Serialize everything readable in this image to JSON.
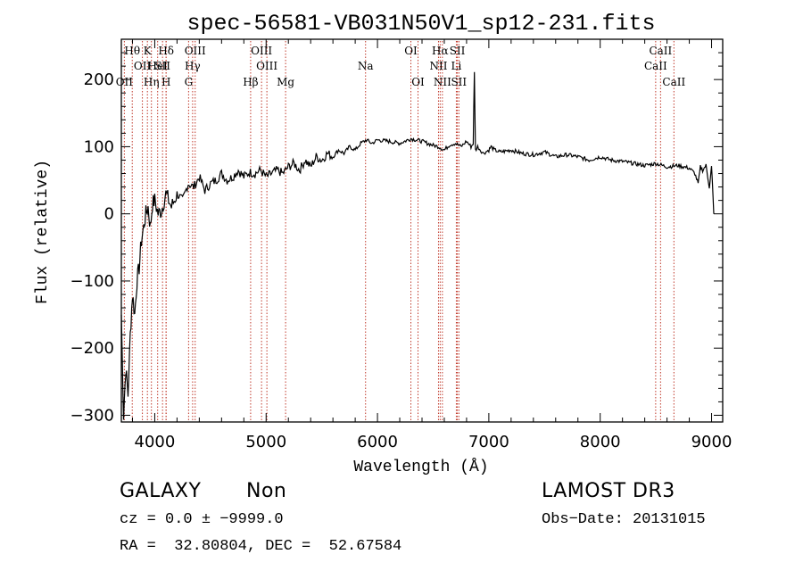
{
  "chart_data": {
    "type": "line",
    "title": "spec-56581-VB031N50V1_sp12-231.fits",
    "xlabel": "Wavelength (Å)",
    "ylabel": "Flux (relative)",
    "xlim": [
      3700,
      9100
    ],
    "ylim": [
      -310,
      260
    ],
    "xticks": [
      {
        "value": 4000,
        "label": "4000"
      },
      {
        "value": 5000,
        "label": "5000"
      },
      {
        "value": 6000,
        "label": "6000"
      },
      {
        "value": 7000,
        "label": "7000"
      },
      {
        "value": 8000,
        "label": "8000"
      },
      {
        "value": 9000,
        "label": "9000"
      }
    ],
    "yticks": [
      {
        "value": -300,
        "label": "−300"
      },
      {
        "value": -200,
        "label": "−200"
      },
      {
        "value": -100,
        "label": "−100"
      },
      {
        "value": 0,
        "label": "0"
      },
      {
        "value": 100,
        "label": "100"
      },
      {
        "value": 200,
        "label": "200"
      }
    ],
    "series": [
      {
        "name": "flux",
        "x": [
          3700,
          3720,
          3740,
          3760,
          3780,
          3800,
          3820,
          3840,
          3860,
          3880,
          3900,
          3920,
          3940,
          3960,
          3980,
          4000,
          4030,
          4060,
          4100,
          4150,
          4200,
          4250,
          4300,
          4350,
          4400,
          4450,
          4500,
          4550,
          4600,
          4650,
          4700,
          4750,
          4800,
          4850,
          4900,
          4950,
          5000,
          5050,
          5100,
          5150,
          5200,
          5250,
          5300,
          5350,
          5400,
          5450,
          5500,
          5550,
          5600,
          5650,
          5700,
          5750,
          5800,
          5850,
          5900,
          5950,
          6000,
          6100,
          6200,
          6300,
          6400,
          6500,
          6550,
          6600,
          6650,
          6700,
          6750,
          6800,
          6840,
          6860,
          6870,
          6880,
          6900,
          6950,
          7000,
          7020,
          7050,
          7100,
          7200,
          7300,
          7400,
          7500,
          7600,
          7700,
          7800,
          7900,
          8000,
          8100,
          8200,
          8300,
          8400,
          8500,
          8600,
          8700,
          8800,
          8850,
          8880,
          8900,
          8920,
          8950,
          8980,
          9000,
          9020
        ],
        "y": [
          -150,
          -300,
          -230,
          -270,
          -180,
          -120,
          -150,
          -100,
          -80,
          -40,
          -20,
          0,
          10,
          -20,
          15,
          20,
          0,
          5,
          30,
          10,
          30,
          20,
          45,
          40,
          55,
          35,
          45,
          50,
          60,
          50,
          55,
          65,
          55,
          62,
          60,
          65,
          55,
          60,
          65,
          60,
          70,
          75,
          65,
          80,
          70,
          85,
          80,
          90,
          85,
          95,
          90,
          100,
          95,
          105,
          110,
          105,
          110,
          108,
          105,
          112,
          108,
          102,
          100,
          95,
          103,
          105,
          100,
          108,
          100,
          105,
          210,
          95,
          100,
          90,
          95,
          100,
          95,
          92,
          95,
          90,
          88,
          92,
          85,
          88,
          85,
          80,
          85,
          80,
          78,
          75,
          72,
          75,
          70,
          72,
          68,
          60,
          45,
          70,
          65,
          72,
          40,
          70,
          0
        ]
      }
    ],
    "lines": [
      {
        "name": "OII",
        "x": 3727,
        "label": "OII",
        "row": 2
      },
      {
        "name": "Hθ",
        "x": 3798,
        "label": "Hθ",
        "row": 0
      },
      {
        "name": "OII-a",
        "x": 3889,
        "label": "OII",
        "row": 1
      },
      {
        "name": "Hη",
        "x": 3970,
        "label": "Hη",
        "row": 2
      },
      {
        "name": "HeI",
        "x": 4026,
        "label": "HeI",
        "row": 1
      },
      {
        "name": "K",
        "x": 3934,
        "label": "K",
        "row": 0
      },
      {
        "name": "H",
        "x": 4102,
        "label": "H",
        "row": 2
      },
      {
        "name": "Hδ",
        "x": 4102,
        "label": "Hδ",
        "row": 0
      },
      {
        "name": "SII",
        "x": 4070,
        "label": "SII",
        "row": 1
      },
      {
        "name": "OIII-a",
        "x": 4363,
        "label": "OIII",
        "row": 0
      },
      {
        "name": "Hγ",
        "x": 4340,
        "label": "Hγ",
        "row": 1
      },
      {
        "name": "G",
        "x": 4304,
        "label": "G",
        "row": 2
      },
      {
        "name": "Hβ",
        "x": 4861,
        "label": "Hβ",
        "row": 2
      },
      {
        "name": "OIII-b",
        "x": 4959,
        "label": "OIII",
        "row": 0
      },
      {
        "name": "OIII-c",
        "x": 5007,
        "label": "OIII",
        "row": 1
      },
      {
        "name": "Mg",
        "x": 5175,
        "label": "Mg",
        "row": 2
      },
      {
        "name": "Na",
        "x": 5893,
        "label": "Na",
        "row": 1
      },
      {
        "name": "OI-a",
        "x": 6300,
        "label": "OI",
        "row": 0
      },
      {
        "name": "OI-b",
        "x": 6364,
        "label": "OI",
        "row": 2
      },
      {
        "name": "Hα",
        "x": 6563,
        "label": "Hα",
        "row": 0
      },
      {
        "name": "NII-a",
        "x": 6548,
        "label": "NII",
        "row": 1
      },
      {
        "name": "NII-b",
        "x": 6583,
        "label": "NII",
        "row": 2
      },
      {
        "name": "SII-a",
        "x": 6717,
        "label": "SII",
        "row": 0
      },
      {
        "name": "Li",
        "x": 6708,
        "label": "Li",
        "row": 1
      },
      {
        "name": "SII-b",
        "x": 6731,
        "label": "SII",
        "row": 2
      },
      {
        "name": "CaII-a",
        "x": 8498,
        "label": "CaII",
        "row": 1
      },
      {
        "name": "CaII-b",
        "x": 8542,
        "label": "CaII",
        "row": 0
      },
      {
        "name": "CaII-c",
        "x": 8662,
        "label": "CaII",
        "row": 2
      }
    ]
  },
  "info": {
    "class": "GALAXY",
    "subclass": "Non",
    "survey": "LAMOST DR3",
    "cz": "cz = 0.0 ± −9999.0",
    "obs_date": "Obs−Date: 20131015",
    "radec": "RA =  32.80804, DEC =  52.67584"
  },
  "colors": {
    "line_marker": "#c0392b",
    "spectrum": "#000000",
    "axes": "#000000"
  }
}
